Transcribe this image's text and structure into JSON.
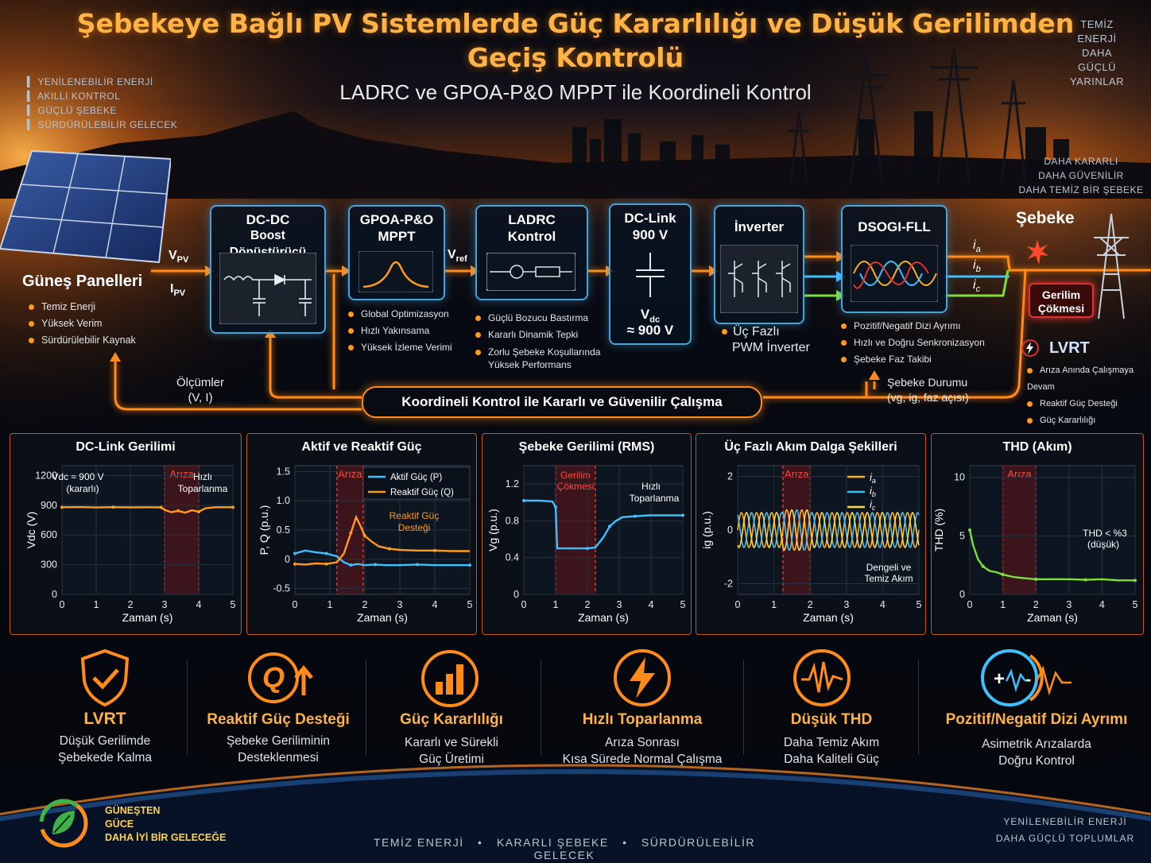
{
  "header": {
    "title_line1": "Şebekeye Bağlı PV Sistemlerde Güç Kararlılığı ve Düşük Gerilimden",
    "title_line2": "Geçiş Kontrolü",
    "subtitle": "LADRC ve GPOA-P&O MPPT ile Koordineli Kontrol"
  },
  "tags_left": [
    "YENİLENEBİLİR ENERJİ",
    "AKILLI KONTROL",
    "GÜÇLÜ ŞEBEKE",
    "SÜRDÜRÜLEBİLİR GELECEK"
  ],
  "tags_right_top": [
    "TEMİZ",
    "ENERJİ",
    "DAHA GÜÇLÜ",
    "YARINLAR"
  ],
  "tags_right_mid": [
    "DAHA KARARLI",
    "DAHA GÜVENİLİR",
    "DAHA TEMİZ BİR ŞEBEKE"
  ],
  "solar": {
    "title": "Güneş Panelleri",
    "bullets": [
      "Temiz Enerji",
      "Yüksek Verim",
      "Sürdürülebilir Kaynak"
    ],
    "v_label": "V",
    "v_sub": "PV",
    "i_label": "I",
    "i_sub": "PV"
  },
  "blocks": {
    "dcdc": {
      "line1": "DC-DC",
      "line2": "Boost Dönüştürücü"
    },
    "mppt": {
      "line1": "GPOA-P&O",
      "line2": "MPPT",
      "bullets": [
        "Global Optimizasyon",
        "Hızlı Yakınsama",
        "Yüksek İzleme Verimi"
      ]
    },
    "vref": {
      "main": "V",
      "sub": "ref"
    },
    "ladrc": {
      "line1": "LADRC",
      "line2": "Kontrol",
      "bullets": [
        "Güçlü Bozucu Bastırma",
        "Kararlı Dinamik Tepki",
        "Zorlu Şebeke Koşullarında",
        "Yüksek Performans"
      ]
    },
    "dclink": {
      "line1": "DC-Link",
      "line2": "900 V",
      "vdc_main": "V",
      "vdc_sub": "dc",
      "vdc_val": "≈ 900 V"
    },
    "inverter": {
      "title": "İnverter",
      "line1": "Üç Fazlı",
      "line2": "PWM İnverter"
    },
    "dsogi": {
      "title": "DSOGI-FLL",
      "bullets": [
        "Pozitif/Negatif Dizi Ayrımı",
        "Hızlı ve Doğru Senkronizasyon",
        "Şebeke Faz Takibi"
      ]
    },
    "phases": [
      {
        "main": "i",
        "sub": "a"
      },
      {
        "main": "i",
        "sub": "b"
      },
      {
        "main": "i",
        "sub": "c"
      }
    ],
    "grid": {
      "title": "Şebeke",
      "fault_line1": "Gerilim",
      "fault_line2": "Çökmesi",
      "lvrt_title": "LVRT",
      "lvrt_bullets": [
        "Arıza Anında Çalışmaya Devam",
        "Reaktif Güç Desteği",
        "Güç Kararlılığı"
      ]
    }
  },
  "feedback": {
    "measure_line1": "Ölçümler",
    "measure_line2": "(V, I)",
    "banner": "Koordineli Kontrol ile Kararlı ve Güvenilir Çalışma",
    "grid_state_line1": "Şebeke Durumu",
    "grid_state_line2": "(vg, ig, faz açısı)"
  },
  "colors": {
    "accent": "#ff8c1a",
    "blue": "#4aa3d8",
    "fault": "#e0322e",
    "green": "#7ee03a",
    "phase_a": "#ffb020",
    "phase_b": "#3ec0ff",
    "phase_c": "#ffd84a"
  },
  "chart_data": [
    {
      "type": "line",
      "title": "DC-Link Gerilimi",
      "xlabel": "Zaman (s)",
      "ylabel": "Vdc (V)",
      "xlim": [
        0,
        5
      ],
      "ylim": [
        0,
        1300
      ],
      "xticks": [
        0,
        1,
        2,
        3,
        4,
        5
      ],
      "yticks": [
        0,
        300,
        600,
        900,
        1200
      ],
      "ytick_labels": [
        "0",
        "300",
        "600",
        "900",
        "1200"
      ],
      "fault_region": [
        3,
        4
      ],
      "fault_label": "Arıza",
      "annotations": [
        "Vdc ≈ 900 V",
        "(kararlı)",
        "Hızlı",
        "Toparlanma"
      ],
      "series": [
        {
          "color": "#ff9a1f",
          "x": [
            0,
            0.5,
            1,
            1.5,
            2,
            2.5,
            2.9,
            3.0,
            3.2,
            3.4,
            3.6,
            3.8,
            4.0,
            4.2,
            4.5,
            5.0
          ],
          "y": [
            880,
            882,
            878,
            881,
            879,
            880,
            879,
            855,
            830,
            845,
            825,
            850,
            835,
            870,
            880,
            880
          ]
        }
      ]
    },
    {
      "type": "line",
      "title": "Aktif ve Reaktif Güç",
      "xlabel": "Zaman (s)",
      "ylabel": "P, Q (p.u.)",
      "xlim": [
        0,
        5
      ],
      "ylim": [
        -0.6,
        1.6
      ],
      "xticks": [
        0,
        1,
        2,
        3,
        4,
        5
      ],
      "yticks": [
        -0.5,
        0,
        0.5,
        1.0,
        1.5
      ],
      "ytick_labels": [
        "-0.5",
        "0",
        "0.5",
        "1.0",
        "1.5"
      ],
      "fault_region": [
        1.2,
        1.95
      ],
      "fault_label": "Arıza",
      "annotations": [
        "Reaktif Güç",
        "Desteği"
      ],
      "series": [
        {
          "name": "Aktif Güç (P)",
          "color": "#3ec0ff",
          "x": [
            0,
            0.3,
            0.6,
            0.9,
            1.2,
            1.4,
            1.6,
            1.8,
            2.0,
            2.3,
            2.6,
            3.0,
            3.5,
            4.0,
            4.5,
            5.0
          ],
          "y": [
            0.1,
            0.15,
            0.12,
            0.1,
            0.05,
            -0.05,
            -0.1,
            -0.08,
            -0.1,
            -0.09,
            -0.1,
            -0.1,
            -0.09,
            -0.1,
            -0.1,
            -0.1
          ]
        },
        {
          "name": "Reaktif Güç (Q)",
          "color": "#ff9a1f",
          "x": [
            0,
            0.3,
            0.6,
            0.9,
            1.2,
            1.4,
            1.6,
            1.75,
            1.85,
            2.0,
            2.2,
            2.4,
            2.7,
            3.0,
            3.5,
            4.0,
            4.5,
            5.0
          ],
          "y": [
            -0.08,
            -0.09,
            -0.07,
            -0.08,
            -0.05,
            0.1,
            0.45,
            0.72,
            0.6,
            0.4,
            0.3,
            0.22,
            0.18,
            0.16,
            0.15,
            0.15,
            0.14,
            0.14
          ]
        }
      ]
    },
    {
      "type": "line",
      "title": "Şebeke Gerilimi (RMS)",
      "xlabel": "Zaman (s)",
      "ylabel": "Vg (p.u.)",
      "xlim": [
        0,
        5
      ],
      "ylim": [
        0,
        1.4
      ],
      "xticks": [
        0,
        1,
        2,
        3,
        4,
        5
      ],
      "yticks": [
        0,
        0.4,
        0.8,
        1.2
      ],
      "ytick_labels": [
        "0",
        "0.4",
        "0.8",
        "1.2"
      ],
      "fault_region": [
        1,
        2.25
      ],
      "fault_label_lines": [
        "Gerilim",
        "Çökmesi"
      ],
      "annotations": [
        "Hızlı",
        "Toparlanma"
      ],
      "series": [
        {
          "color": "#3ec0ff",
          "x": [
            0,
            0.5,
            0.9,
            1.0,
            1.05,
            1.5,
            2.0,
            2.25,
            2.5,
            2.7,
            2.9,
            3.1,
            3.5,
            4.0,
            4.5,
            5.0
          ],
          "y": [
            1.02,
            1.02,
            1.01,
            0.95,
            0.5,
            0.5,
            0.5,
            0.51,
            0.62,
            0.74,
            0.8,
            0.84,
            0.85,
            0.86,
            0.86,
            0.86
          ]
        }
      ]
    },
    {
      "type": "line",
      "title": "Üç Fazlı Akım Dalga Şekilleri",
      "xlabel": "Zaman (s)",
      "ylabel": "ig (p.u.)",
      "xlim": [
        0,
        5
      ],
      "ylim": [
        -2.4,
        2.4
      ],
      "xticks": [
        0,
        1,
        2,
        3,
        4,
        5
      ],
      "yticks": [
        -2,
        0,
        2
      ],
      "ytick_labels": [
        "-2",
        "0",
        "2"
      ],
      "fault_region": [
        1.25,
        2.0
      ],
      "fault_label": "Arıza",
      "annotations": [
        "Dengeli ve",
        "Temiz Akım"
      ],
      "waveform": {
        "amplitude": 0.65,
        "fault_amplitude": 0.75,
        "cycles": 12
      },
      "series": [
        {
          "name": "ia",
          "color": "#ffb020"
        },
        {
          "name": "ib",
          "color": "#3ec0ff"
        },
        {
          "name": "ic",
          "color": "#ffd84a"
        }
      ]
    },
    {
      "type": "line",
      "title": "THD (Akım)",
      "xlabel": "Zaman (s)",
      "ylabel": "THD (%)",
      "xlim": [
        0,
        5
      ],
      "ylim": [
        0,
        11
      ],
      "xticks": [
        0,
        1,
        2,
        3,
        4,
        5
      ],
      "yticks": [
        0,
        5,
        10
      ],
      "ytick_labels": [
        "0",
        "5",
        "10"
      ],
      "fault_region": [
        1,
        2
      ],
      "fault_label": "Arıza",
      "annotations": [
        "THD < %3",
        "(düşük)"
      ],
      "series": [
        {
          "color": "#7ee03a",
          "x": [
            0,
            0.1,
            0.25,
            0.4,
            0.6,
            0.8,
            1.0,
            1.3,
            1.6,
            2.0,
            2.5,
            3.0,
            3.5,
            4.0,
            4.5,
            5.0
          ],
          "y": [
            5.5,
            4.2,
            3.0,
            2.4,
            2.0,
            1.9,
            1.7,
            1.5,
            1.4,
            1.3,
            1.3,
            1.3,
            1.25,
            1.3,
            1.2,
            1.2
          ]
        }
      ]
    }
  ],
  "features": [
    {
      "title": "LVRT",
      "desc1": "Düşük Gerilimde",
      "desc2": "Şebekede Kalma",
      "icon": "shield-check-icon"
    },
    {
      "title": "Reaktif Güç Desteği",
      "desc1": "Şebeke Geriliminin",
      "desc2": "Desteklenmesi",
      "icon": "reactive-q-icon"
    },
    {
      "title": "Güç Kararlılığı",
      "desc1": "Kararlı ve Sürekli",
      "desc2": "Güç Üretimi",
      "icon": "bar-chart-icon"
    },
    {
      "title": "Hızlı Toparlanma",
      "desc1": "Arıza Sonrası",
      "desc2": "Kısa Sürede Normal Çalışma",
      "icon": "lightning-icon"
    },
    {
      "title": "Düşük THD",
      "desc1": "Daha Temiz Akım",
      "desc2": "Daha Kaliteli Güç",
      "icon": "waveform-icon"
    },
    {
      "title": "Pozitif/Negatif Dizi Ayrımı",
      "desc1": "Asimetrik Arızalarda",
      "desc2": "Doğru Kontrol",
      "icon": "sequence-icon"
    }
  ],
  "footer": {
    "logo_line1": "GÜNEŞTEN",
    "logo_line2": "GÜCE",
    "logo_line3": "DAHA İYİ BİR GELECEĞE",
    "center": [
      "TEMİZ ENERJİ",
      "KARARLI ŞEBEKE",
      "SÜRDÜRÜLEBİLİR GELECEK"
    ],
    "right_line1": "YENİLENEBİLİR ENERJİ",
    "right_line2": "DAHA GÜÇLÜ TOPLUMLAR"
  }
}
